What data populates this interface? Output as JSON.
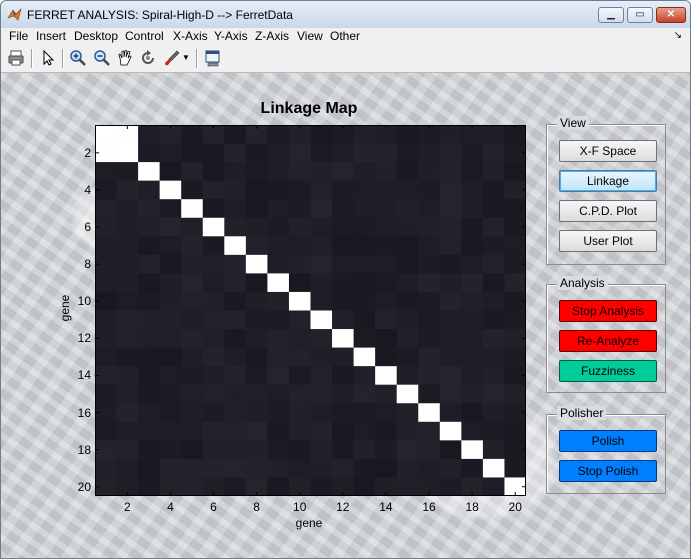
{
  "window": {
    "title": "FERRET ANALYSIS: Spiral-High-D --> FerretData",
    "controls": [
      "minimize-button",
      "maximize-button",
      "close-button"
    ]
  },
  "menu": {
    "items": [
      "File",
      "Insert",
      "Desktop",
      "Control",
      "X-Axis",
      "Y-Axis",
      "Z-Axis",
      "View",
      "Other"
    ],
    "overflow_glyph": "↘"
  },
  "toolbar": {
    "icons": [
      "print-icon",
      "pointer-icon",
      "zoom-in-icon",
      "zoom-out-icon",
      "pan-hand-icon",
      "rotate-icon",
      "data-brush-icon",
      "brush-dropdown-icon",
      "link-plot-icon"
    ]
  },
  "plot": {
    "title": "Linkage Map",
    "xlabel": "gene",
    "ylabel": "gene",
    "xticks": [
      "2",
      "4",
      "6",
      "8",
      "10",
      "12",
      "14",
      "16",
      "18",
      "20"
    ],
    "yticks": [
      "2",
      "4",
      "6",
      "8",
      "10",
      "12",
      "14",
      "16",
      "18",
      "20"
    ],
    "colors": {
      "background": "#1f1f26",
      "diagonal": "#ffffff"
    }
  },
  "chart_data": {
    "type": "heatmap",
    "title": "Linkage Map",
    "xlabel": "gene",
    "ylabel": "gene",
    "x": [
      1,
      2,
      3,
      4,
      5,
      6,
      7,
      8,
      9,
      10,
      11,
      12,
      13,
      14,
      15,
      16,
      17,
      18,
      19,
      20
    ],
    "y": [
      1,
      2,
      3,
      4,
      5,
      6,
      7,
      8,
      9,
      10,
      11,
      12,
      13,
      14,
      15,
      16,
      17,
      18,
      19,
      20
    ],
    "description_values": "diagonal cells = 1.0 (white); genes 1-2 strongly linked (~0.95); all other cells near 0 (dark)",
    "high_cells": [
      [
        1,
        1,
        1.0
      ],
      [
        1,
        2,
        0.95
      ],
      [
        2,
        1,
        0.95
      ],
      [
        2,
        2,
        1.0
      ]
    ]
  },
  "panels": {
    "view": {
      "title": "View",
      "buttons": [
        "X-F Space",
        "Linkage",
        "C.P.D. Plot",
        "User Plot"
      ],
      "active": "Linkage"
    },
    "analysis": {
      "title": "Analysis",
      "buttons": [
        "Stop Analysis",
        "Re-Analyze",
        "Fuzziness"
      ]
    },
    "polisher": {
      "title": "Polisher",
      "buttons": [
        "Polish",
        "Stop Polish"
      ]
    }
  }
}
